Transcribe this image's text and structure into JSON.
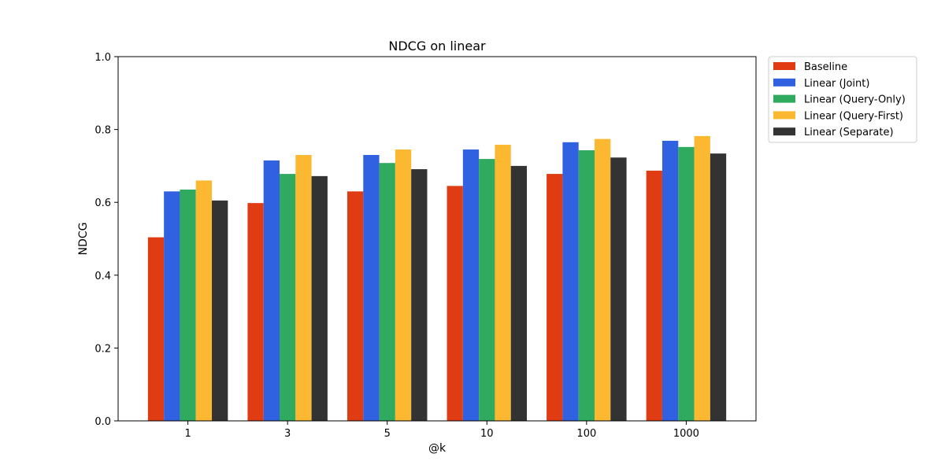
{
  "chart_data": {
    "type": "bar",
    "title": "NDCG on linear",
    "xlabel": "@k",
    "ylabel": "NDCG",
    "categories": [
      "1",
      "3",
      "5",
      "10",
      "100",
      "1000"
    ],
    "ylim": [
      0,
      1.0
    ],
    "yticks": [
      "0.0",
      "0.2",
      "0.4",
      "0.6",
      "0.8",
      "1.0"
    ],
    "grid": false,
    "legend_position": "outside-top-right",
    "series": [
      {
        "name": "Baseline",
        "color": "#e03c13",
        "values": [
          0.504,
          0.598,
          0.63,
          0.645,
          0.678,
          0.687
        ]
      },
      {
        "name": "Linear (Joint)",
        "color": "#3061e0",
        "values": [
          0.63,
          0.715,
          0.73,
          0.745,
          0.765,
          0.769
        ]
      },
      {
        "name": "Linear (Query-Only)",
        "color": "#2faa5e",
        "values": [
          0.635,
          0.678,
          0.708,
          0.719,
          0.743,
          0.752
        ]
      },
      {
        "name": "Linear (Query-First)",
        "color": "#fbb830",
        "values": [
          0.66,
          0.73,
          0.745,
          0.758,
          0.774,
          0.782
        ]
      },
      {
        "name": "Linear (Separate)",
        "color": "#333333",
        "values": [
          0.605,
          0.672,
          0.691,
          0.7,
          0.723,
          0.734
        ]
      }
    ]
  }
}
